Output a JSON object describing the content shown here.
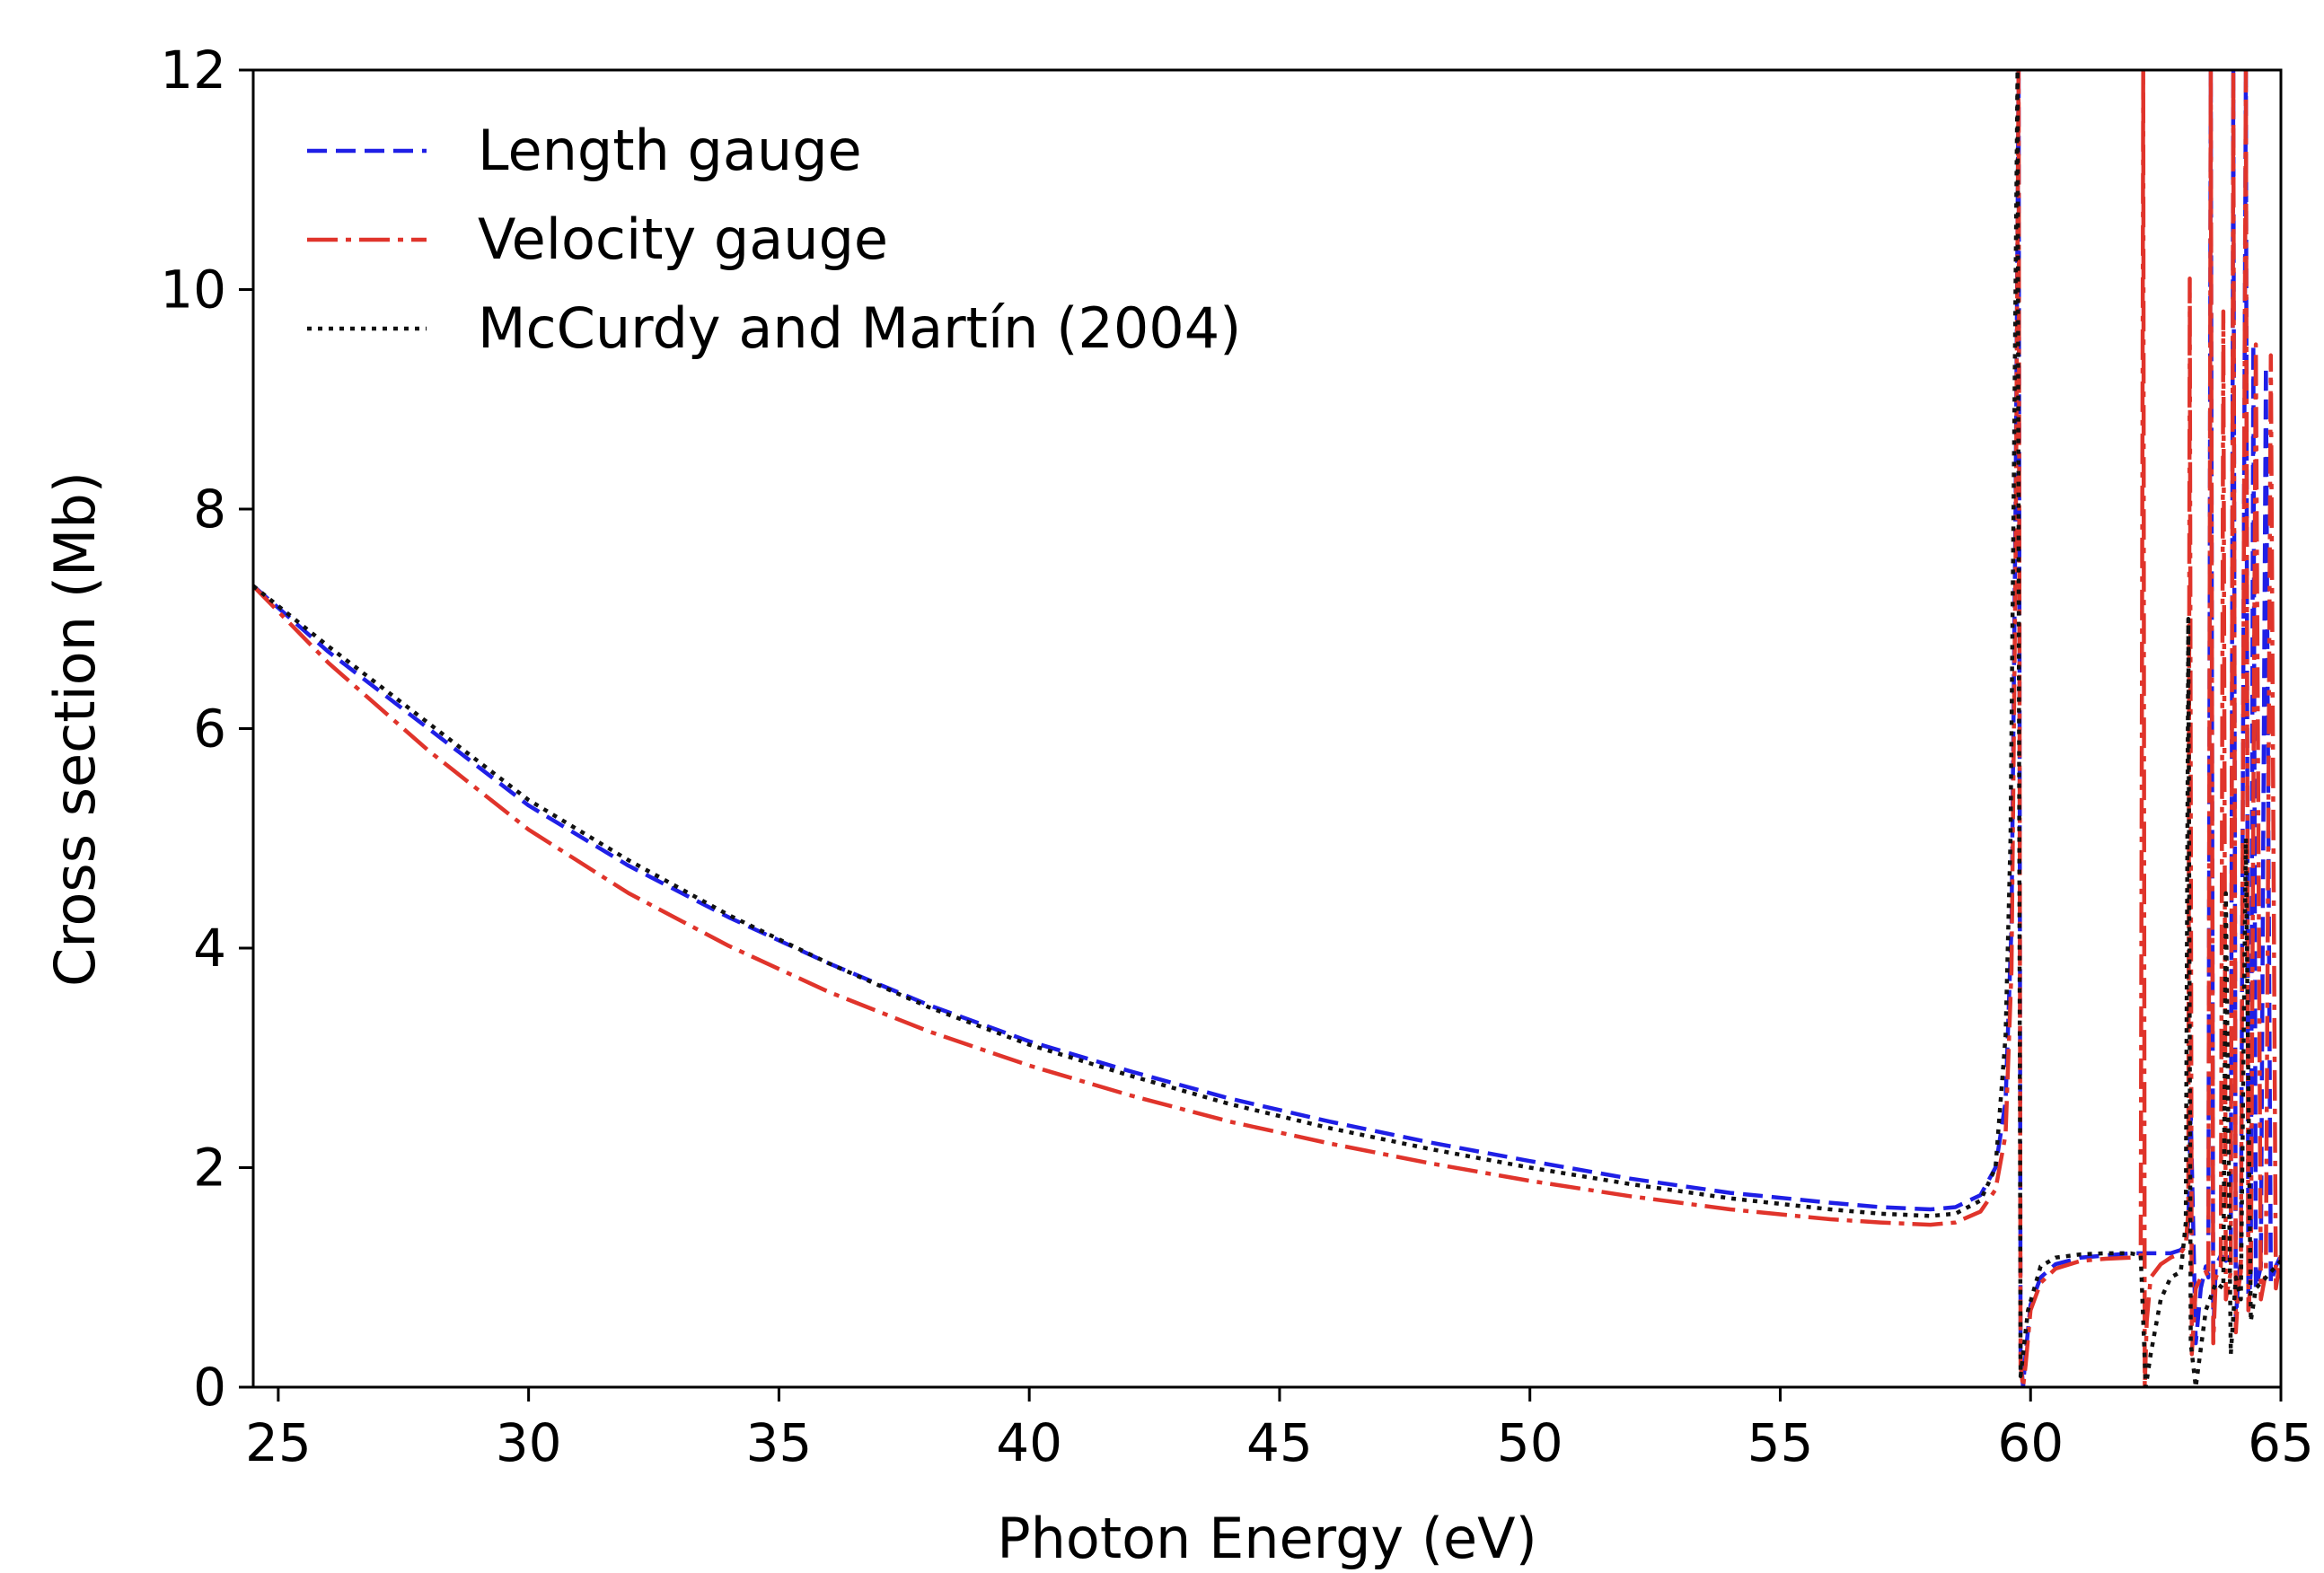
{
  "chart_data": {
    "type": "line",
    "title": "",
    "xlabel": "Photon Energy (eV)",
    "ylabel": "Cross section (Mb)",
    "xlim": [
      24.5,
      65
    ],
    "ylim": [
      0,
      12
    ],
    "xticks": [
      25,
      30,
      35,
      40,
      45,
      50,
      55,
      60,
      65
    ],
    "yticks": [
      0,
      2,
      4,
      6,
      8,
      10,
      12
    ],
    "grid": false,
    "legend_position": "top-left",
    "series": [
      {
        "name": "Length gauge",
        "color": "#1f1fe6",
        "style": "dashed",
        "x": [
          24.5,
          26,
          28,
          30,
          32,
          34,
          36,
          38,
          40,
          42,
          44,
          46,
          48,
          50,
          52,
          54,
          56,
          57,
          58,
          58.5,
          59,
          59.3,
          59.5,
          59.62,
          59.7,
          59.76,
          59.8,
          59.85,
          59.9,
          60,
          60.2,
          60.5,
          61,
          61.5,
          62,
          62.3,
          62.5,
          62.8,
          63,
          63.1,
          63.15,
          63.2,
          63.3,
          63.4,
          63.5,
          63.55,
          63.6,
          63.65,
          63.7,
          63.8,
          63.9,
          64,
          64.05,
          64.1,
          64.15,
          64.2,
          64.3,
          64.35,
          64.4,
          64.45,
          64.5,
          64.6,
          64.7,
          64.8,
          64.9,
          65
        ],
        "y": [
          7.3,
          6.7,
          6.0,
          5.3,
          4.75,
          4.28,
          3.86,
          3.48,
          3.15,
          2.88,
          2.63,
          2.42,
          2.23,
          2.06,
          1.9,
          1.77,
          1.68,
          1.64,
          1.62,
          1.64,
          1.75,
          2.0,
          2.6,
          4.2,
          8.0,
          12.0,
          0.3,
          0.0,
          0.3,
          0.75,
          1.0,
          1.12,
          1.18,
          1.2,
          1.22,
          1.22,
          1.22,
          1.22,
          1.25,
          1.3,
          1.5,
          2.5,
          0.4,
          0.9,
          1.1,
          1.0,
          12.0,
          0.5,
          1.1,
          1.2,
          1.15,
          1.2,
          12.0,
          0.6,
          1.0,
          1.15,
          12.0,
          0.7,
          1.05,
          9.5,
          0.9,
          1.1,
          9.3,
          0.95,
          1.1,
          1.2
        ]
      },
      {
        "name": "Velocity gauge",
        "color": "#e0342b",
        "style": "dashdot",
        "x": [
          24.5,
          26,
          28,
          30,
          32,
          34,
          36,
          38,
          40,
          42,
          44,
          46,
          48,
          50,
          52,
          54,
          56,
          57,
          58,
          58.5,
          59,
          59.3,
          59.5,
          59.62,
          59.7,
          59.76,
          59.8,
          59.85,
          59.9,
          60,
          60.2,
          60.5,
          61,
          61.5,
          62,
          62.2,
          62.25,
          62.28,
          62.32,
          62.4,
          62.6,
          62.8,
          63,
          63.1,
          63.15,
          63.18,
          63.22,
          63.3,
          63.4,
          63.5,
          63.55,
          63.6,
          63.65,
          63.7,
          63.8,
          63.85,
          63.9,
          64,
          64.05,
          64.1,
          64.15,
          64.2,
          64.3,
          64.35,
          64.4,
          64.5,
          64.6,
          64.7,
          64.8,
          64.9,
          65
        ],
        "y": [
          7.3,
          6.6,
          5.8,
          5.08,
          4.5,
          4.02,
          3.6,
          3.24,
          2.93,
          2.66,
          2.42,
          2.22,
          2.04,
          1.88,
          1.74,
          1.62,
          1.53,
          1.5,
          1.48,
          1.5,
          1.6,
          1.8,
          2.3,
          3.8,
          7.5,
          12.0,
          0.2,
          0.0,
          0.2,
          0.7,
          0.95,
          1.08,
          1.15,
          1.17,
          1.18,
          1.19,
          12.0,
          0.0,
          0.6,
          1.0,
          1.12,
          1.18,
          1.22,
          1.3,
          1.6,
          10.1,
          0.3,
          0.9,
          1.0,
          1.05,
          1.0,
          12.0,
          0.4,
          1.0,
          1.1,
          9.8,
          0.8,
          1.05,
          12.0,
          0.5,
          0.9,
          1.05,
          12.0,
          0.7,
          1.0,
          9.5,
          0.8,
          1.05,
          9.4,
          0.9,
          1.2
        ]
      },
      {
        "name": "McCurdy and Martín (2004)",
        "color": "#111111",
        "style": "dotted",
        "x": [
          24.5,
          26,
          28,
          30,
          32,
          34,
          36,
          38,
          40,
          42,
          44,
          46,
          48,
          50,
          52,
          54,
          56,
          57,
          58,
          58.5,
          59,
          59.3,
          59.5,
          59.6,
          59.68,
          59.74,
          59.8,
          59.85,
          59.95,
          60.2,
          60.5,
          61,
          61.5,
          62,
          62.2,
          62.3,
          62.4,
          62.6,
          62.8,
          63,
          63.1,
          63.15,
          63.2,
          63.3,
          63.5,
          63.7,
          63.85,
          63.9,
          64,
          64.1,
          64.2,
          64.3,
          64.4,
          64.5,
          64.7,
          64.9,
          65
        ],
        "y": [
          7.3,
          6.75,
          6.05,
          5.35,
          4.8,
          4.3,
          3.86,
          3.46,
          3.12,
          2.84,
          2.58,
          2.36,
          2.17,
          2.0,
          1.85,
          1.72,
          1.62,
          1.58,
          1.56,
          1.58,
          1.7,
          2.0,
          3.2,
          5.0,
          9.0,
          12.0,
          0.1,
          0.3,
          0.7,
          1.1,
          1.18,
          1.21,
          1.22,
          1.22,
          1.2,
          0.0,
          0.3,
          0.8,
          1.0,
          1.05,
          1.5,
          7.0,
          0.4,
          0.0,
          0.7,
          0.95,
          0.9,
          4.5,
          0.3,
          1.0,
          0.8,
          5.0,
          0.6,
          0.9,
          1.0,
          1.1,
          1.15
        ]
      }
    ]
  }
}
